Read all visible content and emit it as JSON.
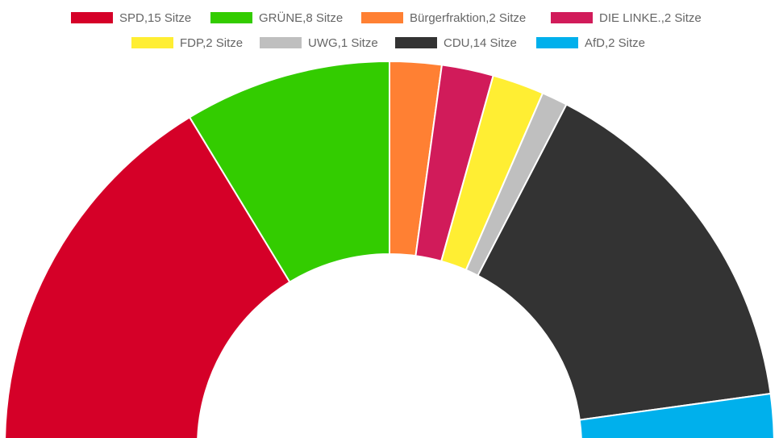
{
  "chart_data": {
    "type": "half-donut",
    "categories": [
      "SPD,15 Sitze",
      "GRÜNE,8 Sitze",
      "Bürgerfraktion,2 Sitze",
      "DIE LINKE.,2 Sitze",
      "FDP,2 Sitze",
      "UWG,1 Sitze",
      "CDU,14 Sitze",
      "AfD,2 Sitze"
    ],
    "values": [
      15,
      8,
      2,
      2,
      2,
      1,
      14,
      2
    ],
    "colors": [
      "#d50028",
      "#33cc00",
      "#ff8033",
      "#d11b5a",
      "#ffee33",
      "#bfbfbf",
      "#333333",
      "#00b0ec"
    ]
  }
}
